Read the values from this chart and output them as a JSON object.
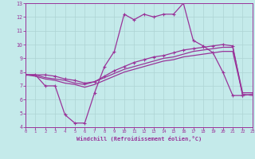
{
  "xlabel": "Windchill (Refroidissement éolien,°C)",
  "xlim": [
    0,
    23
  ],
  "ylim": [
    4,
    13
  ],
  "xtick_vals": [
    0,
    1,
    2,
    3,
    4,
    5,
    6,
    7,
    8,
    9,
    10,
    11,
    12,
    13,
    14,
    15,
    16,
    17,
    18,
    19,
    20,
    21,
    22,
    23
  ],
  "ytick_vals": [
    4,
    5,
    6,
    7,
    8,
    9,
    10,
    11,
    12,
    13
  ],
  "background_color": "#c4eaea",
  "grid_color": "#aed4d4",
  "line_color": "#993399",
  "curve1_x": [
    0,
    1,
    2,
    3,
    4,
    5,
    6,
    7,
    8,
    9,
    10,
    11,
    12,
    13,
    14,
    15,
    16,
    17,
    18,
    19,
    20,
    21,
    22
  ],
  "curve1_y": [
    7.8,
    7.8,
    7.0,
    7.0,
    4.9,
    4.3,
    4.3,
    6.5,
    8.4,
    9.5,
    12.2,
    11.8,
    12.2,
    12.0,
    12.2,
    12.2,
    13.0,
    10.3,
    9.9,
    9.4,
    8.0,
    6.3,
    6.3
  ],
  "curve2_x": [
    0,
    1,
    2,
    3,
    4,
    5,
    6,
    7,
    8,
    9,
    10,
    11,
    12,
    13,
    14,
    15,
    16,
    17,
    18,
    19,
    20,
    21,
    22,
    23
  ],
  "curve2_y": [
    7.8,
    7.7,
    7.5,
    7.4,
    7.2,
    7.1,
    6.9,
    7.1,
    7.4,
    7.7,
    8.0,
    8.2,
    8.4,
    8.6,
    8.8,
    8.9,
    9.1,
    9.2,
    9.3,
    9.4,
    9.5,
    9.5,
    6.4,
    6.3
  ],
  "curve3_x": [
    0,
    1,
    2,
    3,
    4,
    5,
    6,
    7,
    8,
    9,
    10,
    11,
    12,
    13,
    14,
    15,
    16,
    17,
    18,
    19,
    20,
    21,
    22,
    23
  ],
  "curve3_y": [
    7.8,
    7.8,
    7.6,
    7.5,
    7.4,
    7.2,
    7.1,
    7.3,
    7.6,
    7.9,
    8.2,
    8.4,
    8.6,
    8.8,
    9.0,
    9.1,
    9.3,
    9.5,
    9.6,
    9.7,
    9.8,
    9.8,
    6.5,
    6.5
  ],
  "curve4_x": [
    0,
    2,
    3,
    4,
    5,
    6,
    7,
    8,
    9,
    10,
    11,
    12,
    13,
    14,
    15,
    16,
    17,
    18,
    19,
    20,
    21,
    22,
    23
  ],
  "curve4_y": [
    7.8,
    7.8,
    7.7,
    7.5,
    7.4,
    7.2,
    7.3,
    7.7,
    8.1,
    8.4,
    8.7,
    8.9,
    9.1,
    9.2,
    9.4,
    9.6,
    9.7,
    9.8,
    9.9,
    10.0,
    9.9,
    6.3,
    6.4
  ]
}
